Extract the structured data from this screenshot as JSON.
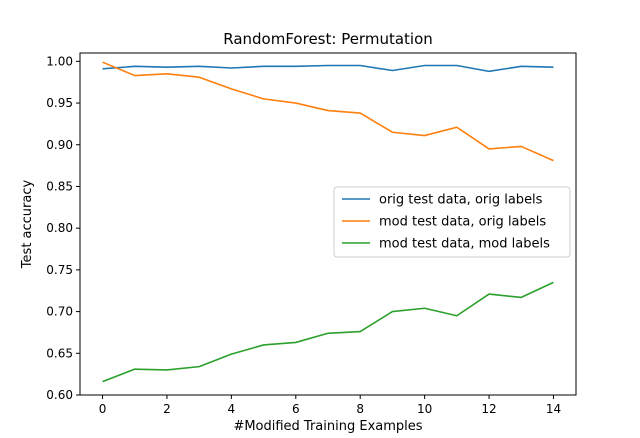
{
  "chart_data": {
    "type": "line",
    "title": "RandomForest: Permutation",
    "xlabel": "#Modified Training Examples",
    "ylabel": "Test accuracy",
    "xlim": [
      -0.7,
      14.7
    ],
    "ylim": [
      0.6,
      1.01
    ],
    "xticks": [
      0,
      2,
      4,
      6,
      8,
      10,
      12,
      14
    ],
    "yticks": [
      0.6,
      0.65,
      0.7,
      0.75,
      0.8,
      0.85,
      0.9,
      0.95,
      1.0
    ],
    "ytick_labels": [
      "0.60",
      "0.65",
      "0.70",
      "0.75",
      "0.80",
      "0.85",
      "0.90",
      "0.95",
      "1.00"
    ],
    "grid": false,
    "legend_position": "center-right",
    "x": [
      0,
      1,
      2,
      3,
      4,
      5,
      6,
      7,
      8,
      9,
      10,
      11,
      12,
      13,
      14
    ],
    "series": [
      {
        "name": "orig test data, orig labels",
        "color": "#1f77b4",
        "values": [
          0.991,
          0.994,
          0.993,
          0.994,
          0.992,
          0.994,
          0.994,
          0.995,
          0.995,
          0.989,
          0.995,
          0.995,
          0.988,
          0.994,
          0.993
        ]
      },
      {
        "name": "mod test data, orig labels",
        "color": "#ff7f0e",
        "values": [
          0.999,
          0.983,
          0.985,
          0.981,
          0.967,
          0.955,
          0.95,
          0.941,
          0.938,
          0.915,
          0.911,
          0.921,
          0.895,
          0.898,
          0.881
        ]
      },
      {
        "name": "mod test data, mod labels",
        "color": "#2ca02c",
        "values": [
          0.616,
          0.631,
          0.63,
          0.634,
          0.649,
          0.66,
          0.663,
          0.674,
          0.676,
          0.7,
          0.704,
          0.695,
          0.721,
          0.717,
          0.735
        ]
      }
    ]
  }
}
